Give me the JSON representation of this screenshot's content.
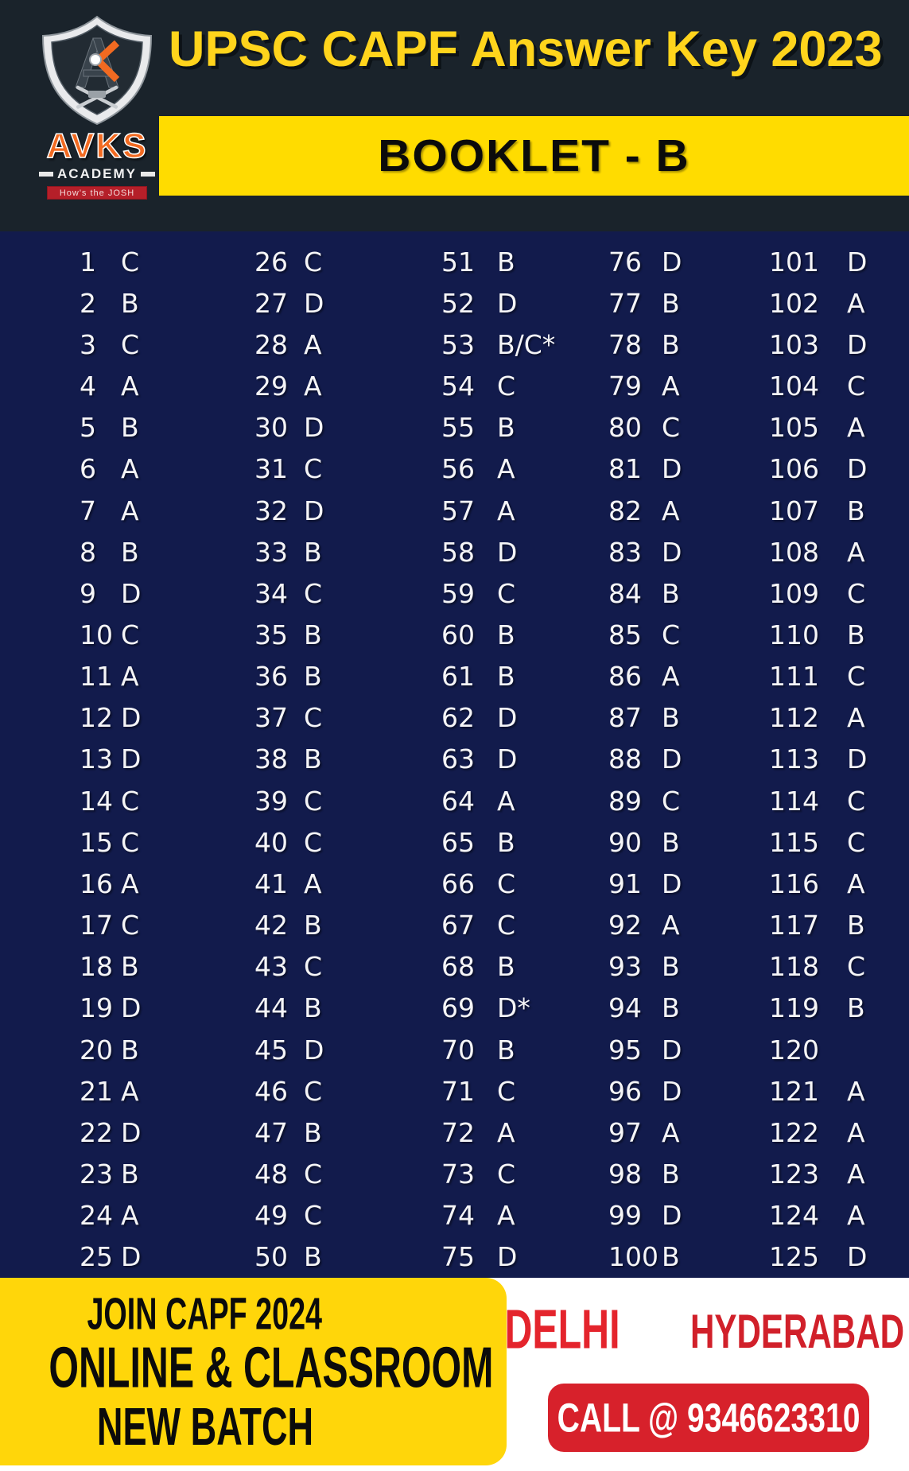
{
  "header": {
    "title": "UPSC CAPF Answer Key 2023",
    "booklet": "BOOKLET - B"
  },
  "logo": {
    "name": "AVKS",
    "subtitle": "ACADEMY",
    "tagline": "How's the JOSH"
  },
  "answers": [
    {
      "q": "1",
      "a": "C"
    },
    {
      "q": "2",
      "a": "B"
    },
    {
      "q": "3",
      "a": "C"
    },
    {
      "q": "4",
      "a": "A"
    },
    {
      "q": "5",
      "a": "B"
    },
    {
      "q": "6",
      "a": "A"
    },
    {
      "q": "7",
      "a": "A"
    },
    {
      "q": "8",
      "a": "B"
    },
    {
      "q": "9",
      "a": "D"
    },
    {
      "q": "10",
      "a": "C"
    },
    {
      "q": "11",
      "a": "A"
    },
    {
      "q": "12",
      "a": "D"
    },
    {
      "q": "13",
      "a": "D"
    },
    {
      "q": "14",
      "a": "C"
    },
    {
      "q": "15",
      "a": "C"
    },
    {
      "q": "16",
      "a": "A"
    },
    {
      "q": "17",
      "a": "C"
    },
    {
      "q": "18",
      "a": "B"
    },
    {
      "q": "19",
      "a": "D"
    },
    {
      "q": "20",
      "a": "B"
    },
    {
      "q": "21",
      "a": "A"
    },
    {
      "q": "22",
      "a": "D"
    },
    {
      "q": "23",
      "a": "B"
    },
    {
      "q": "24",
      "a": "A"
    },
    {
      "q": "25",
      "a": "D"
    },
    {
      "q": "26",
      "a": "C"
    },
    {
      "q": "27",
      "a": "D"
    },
    {
      "q": "28",
      "a": "A"
    },
    {
      "q": "29",
      "a": "A"
    },
    {
      "q": "30",
      "a": "D"
    },
    {
      "q": "31",
      "a": "C"
    },
    {
      "q": "32",
      "a": "D"
    },
    {
      "q": "33",
      "a": "B"
    },
    {
      "q": "34",
      "a": "C"
    },
    {
      "q": "35",
      "a": "B"
    },
    {
      "q": "36",
      "a": "B"
    },
    {
      "q": "37",
      "a": "C"
    },
    {
      "q": "38",
      "a": "B"
    },
    {
      "q": "39",
      "a": "C"
    },
    {
      "q": "40",
      "a": "C"
    },
    {
      "q": "41",
      "a": "A"
    },
    {
      "q": "42",
      "a": "B"
    },
    {
      "q": "43",
      "a": "C"
    },
    {
      "q": "44",
      "a": "B"
    },
    {
      "q": "45",
      "a": "D"
    },
    {
      "q": "46",
      "a": "C"
    },
    {
      "q": "47",
      "a": "B"
    },
    {
      "q": "48",
      "a": "C"
    },
    {
      "q": "49",
      "a": "C"
    },
    {
      "q": "50",
      "a": "B"
    },
    {
      "q": "51",
      "a": "B"
    },
    {
      "q": "52",
      "a": "D"
    },
    {
      "q": "53",
      "a": "B/C*"
    },
    {
      "q": "54",
      "a": "C"
    },
    {
      "q": "55",
      "a": "B"
    },
    {
      "q": "56",
      "a": "A"
    },
    {
      "q": "57",
      "a": "A"
    },
    {
      "q": "58",
      "a": "D"
    },
    {
      "q": "59",
      "a": "C"
    },
    {
      "q": "60",
      "a": "B"
    },
    {
      "q": "61",
      "a": "B"
    },
    {
      "q": "62",
      "a": "D"
    },
    {
      "q": "63",
      "a": "D"
    },
    {
      "q": "64",
      "a": "A"
    },
    {
      "q": "65",
      "a": "B"
    },
    {
      "q": "66",
      "a": "C"
    },
    {
      "q": "67",
      "a": "C"
    },
    {
      "q": "68",
      "a": "B"
    },
    {
      "q": "69",
      "a": "D*"
    },
    {
      "q": "70",
      "a": "B"
    },
    {
      "q": "71",
      "a": "C"
    },
    {
      "q": "72",
      "a": "A"
    },
    {
      "q": "73",
      "a": "C"
    },
    {
      "q": "74",
      "a": "A"
    },
    {
      "q": "75",
      "a": "D"
    },
    {
      "q": "76",
      "a": "D"
    },
    {
      "q": "77",
      "a": "B"
    },
    {
      "q": "78",
      "a": "B"
    },
    {
      "q": "79",
      "a": "A"
    },
    {
      "q": "80",
      "a": "C"
    },
    {
      "q": "81",
      "a": "D"
    },
    {
      "q": "82",
      "a": "A"
    },
    {
      "q": "83",
      "a": "D"
    },
    {
      "q": "84",
      "a": "B"
    },
    {
      "q": "85",
      "a": "C"
    },
    {
      "q": "86",
      "a": "A"
    },
    {
      "q": "87",
      "a": "B"
    },
    {
      "q": "88",
      "a": "D"
    },
    {
      "q": "89",
      "a": "C"
    },
    {
      "q": "90",
      "a": "B"
    },
    {
      "q": "91",
      "a": "D"
    },
    {
      "q": "92",
      "a": "A"
    },
    {
      "q": "93",
      "a": "B"
    },
    {
      "q": "94",
      "a": "B"
    },
    {
      "q": "95",
      "a": "D"
    },
    {
      "q": "96",
      "a": "D"
    },
    {
      "q": "97",
      "a": "A"
    },
    {
      "q": "98",
      "a": "B"
    },
    {
      "q": "99",
      "a": "D"
    },
    {
      "q": "100",
      "a": "B"
    },
    {
      "q": "101",
      "a": "D"
    },
    {
      "q": "102",
      "a": "A"
    },
    {
      "q": "103",
      "a": "D"
    },
    {
      "q": "104",
      "a": "C"
    },
    {
      "q": "105",
      "a": "A"
    },
    {
      "q": "106",
      "a": "D"
    },
    {
      "q": "107",
      "a": "B"
    },
    {
      "q": "108",
      "a": "A"
    },
    {
      "q": "109",
      "a": "C"
    },
    {
      "q": "110",
      "a": "B"
    },
    {
      "q": "111",
      "a": "C"
    },
    {
      "q": "112",
      "a": "A"
    },
    {
      "q": "113",
      "a": "D"
    },
    {
      "q": "114",
      "a": "C"
    },
    {
      "q": "115",
      "a": "C"
    },
    {
      "q": "116",
      "a": "A"
    },
    {
      "q": "117",
      "a": "B"
    },
    {
      "q": "118",
      "a": "C"
    },
    {
      "q": "119",
      "a": "B"
    },
    {
      "q": "120",
      "a": ""
    },
    {
      "q": "121",
      "a": "A"
    },
    {
      "q": "122",
      "a": "A"
    },
    {
      "q": "123",
      "a": "A"
    },
    {
      "q": "124",
      "a": "A"
    },
    {
      "q": "125",
      "a": "D"
    }
  ],
  "footer": {
    "join_line1": "JOIN CAPF 2024",
    "join_line2": "ONLINE & CLASSROOM",
    "join_line3": "NEW BATCH",
    "city1": "DELHI",
    "city2": "HYDERABAD",
    "call": "CALL @ 9346623310"
  },
  "colors": {
    "navy": "#121B4C",
    "charcoal": "#1A232B",
    "banner_yellow": "#FFDC00",
    "footer_yellow": "#FFD60A",
    "title_gold": "#FFD41C",
    "red": "#D7212B",
    "orange": "#F26A21"
  }
}
